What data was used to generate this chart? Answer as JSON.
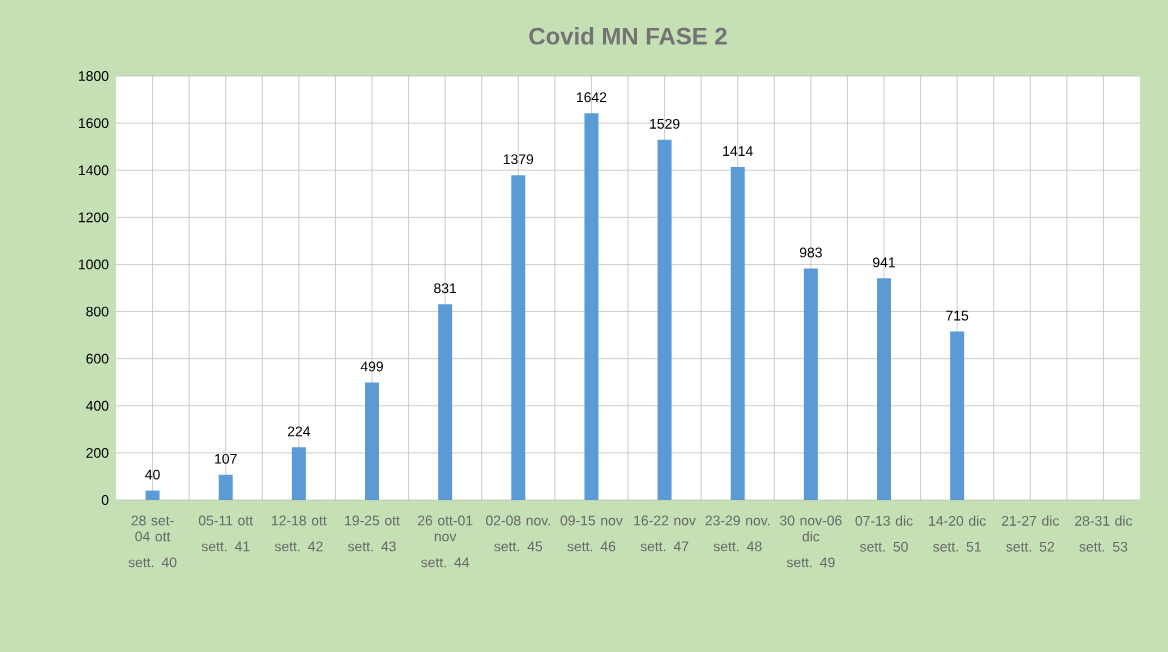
{
  "chart_data": {
    "type": "bar",
    "title": "Covid MN  FASE 2",
    "categories": [
      "28 set-04 ott",
      "05-11 ott",
      "12-18 ott",
      "19-25 ott",
      "26 ott-01 nov",
      "02-08 nov.",
      "09-15 nov",
      "16-22 nov",
      "23-29 nov.",
      "30 nov-06 dic",
      "07-13 dic",
      "14-20 dic",
      "21-27 dic",
      "28-31 dic"
    ],
    "annotations": [
      "sett. 40",
      "sett. 41",
      "sett. 42",
      "sett. 43",
      "sett. 44",
      "sett. 45",
      "sett. 46",
      "sett. 47",
      "sett. 48",
      "sett. 49",
      "sett. 50",
      "sett. 51",
      "sett. 52",
      "sett. 53"
    ],
    "values": [
      40,
      107,
      224,
      499,
      831,
      1379,
      1642,
      1529,
      1414,
      983,
      941,
      715,
      null,
      null
    ],
    "color": "#5b9bd5",
    "data_labels": true,
    "grid": true,
    "ylim": [
      0,
      1800
    ],
    "yticks": [
      0,
      200,
      400,
      600,
      800,
      1000,
      1200,
      1400,
      1600,
      1800
    ]
  }
}
